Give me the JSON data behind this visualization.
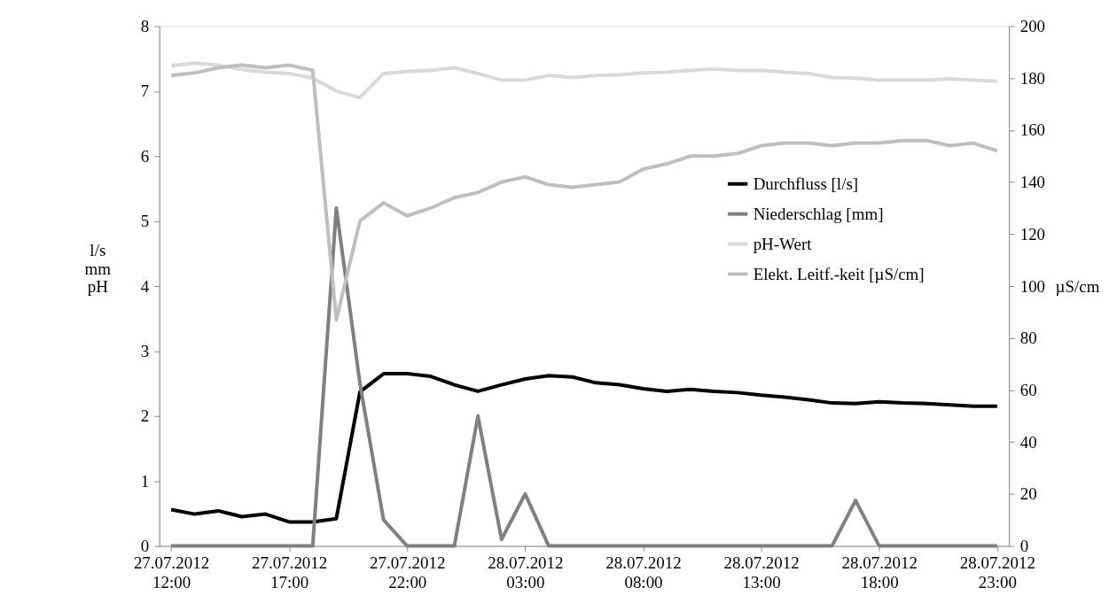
{
  "chart_data": {
    "type": "line",
    "x": [
      "2012-07-27T12:00",
      "2012-07-27T13:00",
      "2012-07-27T14:00",
      "2012-07-27T15:00",
      "2012-07-27T16:00",
      "2012-07-27T17:00",
      "2012-07-27T18:00",
      "2012-07-27T19:00",
      "2012-07-27T20:00",
      "2012-07-27T21:00",
      "2012-07-27T22:00",
      "2012-07-27T23:00",
      "2012-07-28T00:00",
      "2012-07-28T01:00",
      "2012-07-28T02:00",
      "2012-07-28T03:00",
      "2012-07-28T04:00",
      "2012-07-28T05:00",
      "2012-07-28T06:00",
      "2012-07-28T07:00",
      "2012-07-28T08:00",
      "2012-07-28T09:00",
      "2012-07-28T10:00",
      "2012-07-28T11:00",
      "2012-07-28T12:00",
      "2012-07-28T13:00",
      "2012-07-28T14:00",
      "2012-07-28T15:00",
      "2012-07-28T16:00",
      "2012-07-28T17:00",
      "2012-07-28T18:00",
      "2012-07-28T19:00",
      "2012-07-28T20:00",
      "2012-07-28T21:00",
      "2012-07-28T22:00",
      "2012-07-28T23:00"
    ],
    "series": [
      {
        "name": "Durchfluss [l/s]",
        "color": "#000000",
        "values": [
          0.56,
          0.49,
          0.54,
          0.45,
          0.49,
          0.37,
          0.37,
          0.42,
          2.37,
          2.65,
          2.65,
          2.61,
          2.48,
          2.38,
          2.48,
          2.57,
          2.62,
          2.6,
          2.51,
          2.48,
          2.42,
          2.38,
          2.41,
          2.38,
          2.36,
          2.32,
          2.29,
          2.25,
          2.2,
          2.19,
          2.22,
          2.2,
          2.19,
          2.17,
          2.15,
          2.15
        ]
      },
      {
        "name": "Niederschlag [mm]",
        "color": "#808080",
        "values": [
          0,
          0,
          0,
          0,
          0,
          0,
          0,
          5.2,
          2.5,
          0.4,
          0,
          0,
          0,
          2.0,
          0.1,
          0.8,
          0,
          0,
          0,
          0,
          0,
          0,
          0,
          0,
          0,
          0,
          0,
          0,
          0,
          0.7,
          0,
          0,
          0,
          0,
          0,
          0
        ]
      },
      {
        "name": "pH-Wert",
        "color": "#d9d9d9",
        "values": [
          7.39,
          7.43,
          7.4,
          7.33,
          7.29,
          7.27,
          7.2,
          7.0,
          6.9,
          7.27,
          7.3,
          7.32,
          7.36,
          7.27,
          7.17,
          7.17,
          7.24,
          7.21,
          7.24,
          7.25,
          7.28,
          7.29,
          7.32,
          7.34,
          7.32,
          7.32,
          7.29,
          7.27,
          7.21,
          7.2,
          7.17,
          7.17,
          7.17,
          7.19,
          7.17,
          7.15
        ]
      },
      {
        "name": "Elekt. Leitf.-keit [µS/cm]",
        "color": "#bfbfbf",
        "axis": "y2",
        "values": [
          181,
          182,
          184,
          185,
          184,
          185,
          183,
          87,
          125,
          132,
          127,
          130,
          134,
          136,
          140,
          142,
          139,
          138,
          139,
          140,
          145,
          147,
          150,
          150,
          151,
          154,
          155,
          155,
          154,
          155,
          155,
          156,
          156,
          154,
          155,
          152
        ]
      }
    ],
    "xlim": [
      "2012-07-27T11:30",
      "2012-07-28T23:30"
    ],
    "xticks": [
      {
        "value": "2012-07-27T12:00",
        "label": "27.07.2012 12:00"
      },
      {
        "value": "2012-07-27T17:00",
        "label": "27.07.2012 17:00"
      },
      {
        "value": "2012-07-27T22:00",
        "label": "27.07.2012 22:00"
      },
      {
        "value": "2012-07-28T03:00",
        "label": "28.07.2012 03:00"
      },
      {
        "value": "2012-07-28T08:00",
        "label": "28.07.2012 08:00"
      },
      {
        "value": "2012-07-28T13:00",
        "label": "28.07.2012 13:00"
      },
      {
        "value": "2012-07-28T18:00",
        "label": "28.07.2012 18:00"
      },
      {
        "value": "2012-07-28T23:00",
        "label": "28.07.2012 23:00"
      }
    ],
    "ylim": [
      0,
      8
    ],
    "yticks": [
      0,
      1,
      2,
      3,
      4,
      5,
      6,
      7,
      8
    ],
    "y2lim": [
      0,
      200
    ],
    "y2ticks": [
      0,
      20,
      40,
      60,
      80,
      100,
      120,
      140,
      160,
      180,
      200
    ],
    "ylabel": "l/s\nmm\npH",
    "y2label": "µS/cm",
    "legend": "right",
    "grid": false,
    "marker": "none",
    "line_style": "solid"
  }
}
